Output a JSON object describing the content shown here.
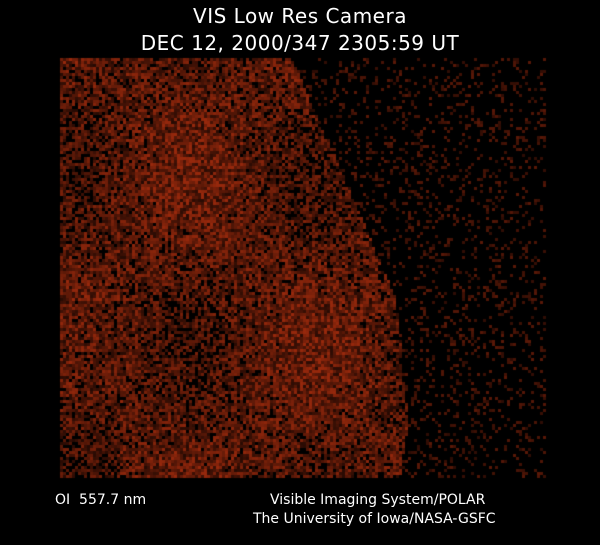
{
  "header": {
    "title": "VIS Low Res Camera",
    "timestamp": "DEC 12, 2000/347 2305:59 UT"
  },
  "image": {
    "description_icon": "auroral-image",
    "color": "#7a2008"
  },
  "footer": {
    "wavelength": "OI  557.7 nm",
    "credit_line1": "Visible Imaging System/POLAR",
    "credit_line2": "The University of Iowa/NASA-GSFC"
  }
}
